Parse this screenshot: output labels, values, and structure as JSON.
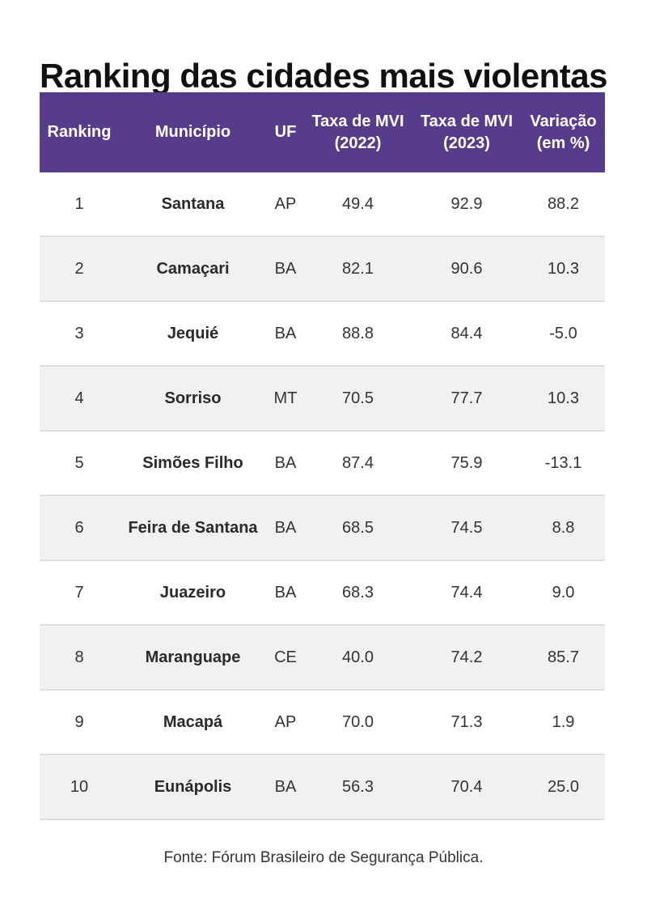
{
  "title": "Ranking das cidades mais violentas",
  "colors": {
    "header_background": "#583c8c",
    "header_text": "#ffffff",
    "stripe_background": "#f1f1f1",
    "row_divider": "#dddddd"
  },
  "table": {
    "headers": {
      "ranking": "Ranking",
      "municipio": "Município",
      "uf": "UF",
      "taxa_2022_line1": "Taxa de MVI",
      "taxa_2022_line2": "(2022)",
      "taxa_2023_line1": "Taxa de MVI",
      "taxa_2023_line2": "(2023)",
      "variacao_line1": "Variação",
      "variacao_line2": "(em %)"
    },
    "rows": [
      {
        "ranking": "1",
        "municipio": "Santana",
        "uf": "AP",
        "taxa_2022": "49.4",
        "taxa_2023": "92.9",
        "variacao": "88.2"
      },
      {
        "ranking": "2",
        "municipio": "Camaçari",
        "uf": "BA",
        "taxa_2022": "82.1",
        "taxa_2023": "90.6",
        "variacao": "10.3"
      },
      {
        "ranking": "3",
        "municipio": "Jequié",
        "uf": "BA",
        "taxa_2022": "88.8",
        "taxa_2023": "84.4",
        "variacao": "-5.0"
      },
      {
        "ranking": "4",
        "municipio": "Sorriso",
        "uf": "MT",
        "taxa_2022": "70.5",
        "taxa_2023": "77.7",
        "variacao": "10.3"
      },
      {
        "ranking": "5",
        "municipio": "Simões Filho",
        "uf": "BA",
        "taxa_2022": "87.4",
        "taxa_2023": "75.9",
        "variacao": "-13.1"
      },
      {
        "ranking": "6",
        "municipio": "Feira de Santana",
        "uf": "BA",
        "taxa_2022": "68.5",
        "taxa_2023": "74.5",
        "variacao": "8.8"
      },
      {
        "ranking": "7",
        "municipio": "Juazeiro",
        "uf": "BA",
        "taxa_2022": "68.3",
        "taxa_2023": "74.4",
        "variacao": "9.0"
      },
      {
        "ranking": "8",
        "municipio": "Maranguape",
        "uf": "CE",
        "taxa_2022": "40.0",
        "taxa_2023": "74.2",
        "variacao": "85.7"
      },
      {
        "ranking": "9",
        "municipio": "Macapá",
        "uf": "AP",
        "taxa_2022": "70.0",
        "taxa_2023": "71.3",
        "variacao": "1.9"
      },
      {
        "ranking": "10",
        "municipio": "Eunápolis",
        "uf": "BA",
        "taxa_2022": "56.3",
        "taxa_2023": "70.4",
        "variacao": "25.0"
      }
    ]
  },
  "source": "Fonte: Fórum Brasileiro de Segurança Pública."
}
